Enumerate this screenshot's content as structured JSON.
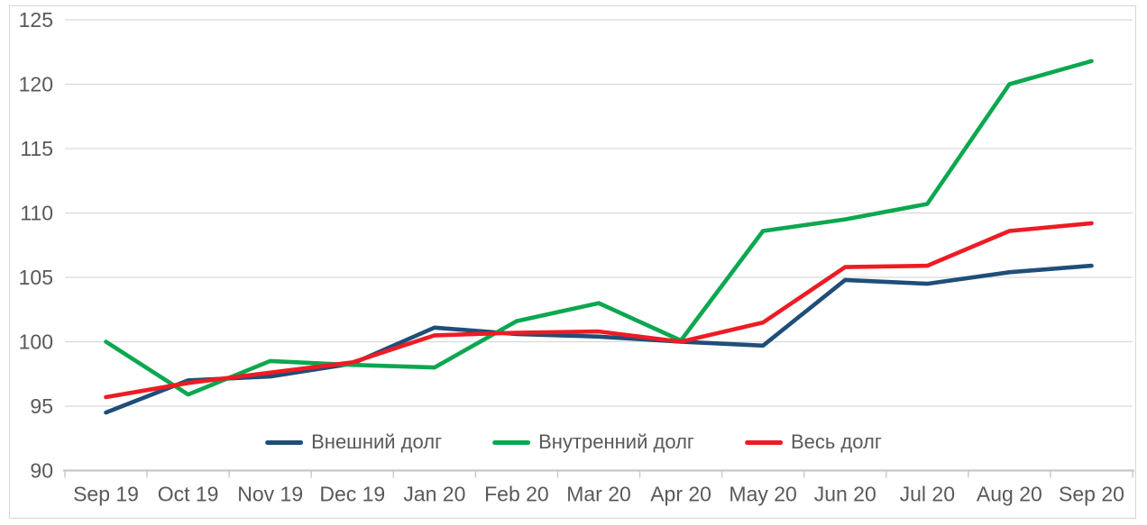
{
  "figure": {
    "background_color": "#ffffff",
    "border_color": "#d6d6d6"
  },
  "styles": {
    "grid_color": "#d9d9d9",
    "axis_line_color": "#c8c8c8",
    "label_color": "#595959"
  },
  "chart_data": {
    "type": "line",
    "title": "",
    "xlabel": "",
    "ylabel": "",
    "grid": true,
    "legend_position": "bottom-center",
    "categories": [
      "Sep 19",
      "Oct 19",
      "Nov 19",
      "Dec 19",
      "Jan 20",
      "Feb 20",
      "Mar 20",
      "Apr 20",
      "May 20",
      "Jun 20",
      "Jul 20",
      "Aug 20",
      "Sep 20"
    ],
    "y_axis": {
      "min": 90,
      "max": 125,
      "step": 5,
      "ticks": [
        90,
        95,
        100,
        105,
        110,
        115,
        120,
        125
      ]
    },
    "series": [
      {
        "name": "Внешний долг",
        "color": "#1f4e79",
        "values": [
          94.5,
          97.0,
          97.3,
          98.3,
          101.1,
          100.6,
          100.4,
          100.0,
          99.7,
          104.8,
          104.5,
          105.4,
          105.9
        ]
      },
      {
        "name": "Внутренний долг",
        "color": "#0ca750",
        "values": [
          100.0,
          95.9,
          98.5,
          98.2,
          98.0,
          101.6,
          103.0,
          100.1,
          108.6,
          109.5,
          110.7,
          120.0,
          121.8
        ]
      },
      {
        "name": "Весь долг",
        "color": "#ed1c24",
        "values": [
          95.7,
          96.8,
          97.6,
          98.4,
          100.5,
          100.7,
          100.8,
          100.0,
          101.5,
          105.8,
          105.9,
          108.6,
          109.2
        ]
      }
    ]
  }
}
